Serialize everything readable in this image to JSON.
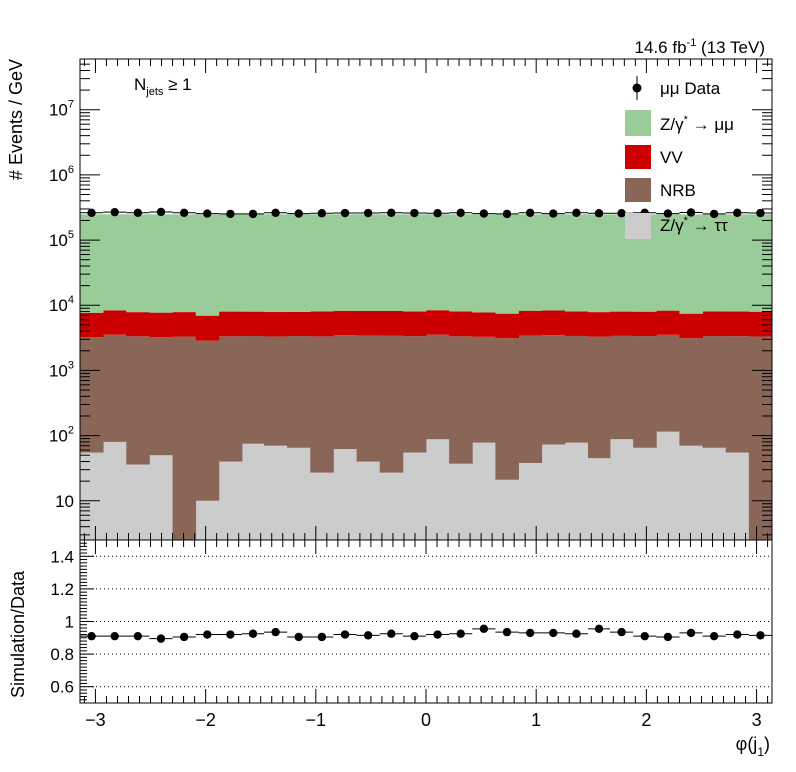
{
  "lumi_text": {
    "main": "14.6 fb",
    "sup": "-1",
    "rest": " (13 TeV)"
  },
  "category": {
    "base": "N",
    "sub": "jets",
    "rest": " ≥ 1"
  },
  "ylabel_top": "# Events / GeV",
  "ylabel_bottom": "Simulation/Data",
  "xlabel": {
    "main": "φ(j",
    "sub": "1",
    "close": ")"
  },
  "legend": [
    {
      "key": "data",
      "label": "μμ Data",
      "color": "#000000"
    },
    {
      "key": "zmm",
      "label_a": "Z/γ",
      "label_sup": "*",
      "label_b": " → μμ",
      "color": "#99cc99"
    },
    {
      "key": "vv",
      "label": "VV",
      "color": "#cc0000"
    },
    {
      "key": "nrb",
      "label": "NRB",
      "color": "#8a6658"
    },
    {
      "key": "ztt",
      "label_a": "Z/γ",
      "label_sup": "*",
      "label_b": " → ττ",
      "color": "#cccccc"
    }
  ],
  "chart_data": {
    "type": "bar",
    "stacked": true,
    "bin_edges": [
      -3.14,
      -2.93,
      -2.72,
      -2.51,
      -2.3,
      -2.09,
      -1.88,
      -1.67,
      -1.47,
      -1.26,
      -1.05,
      -0.84,
      -0.63,
      -0.42,
      -0.21,
      0.0,
      0.21,
      0.42,
      0.63,
      0.84,
      1.05,
      1.26,
      1.47,
      1.67,
      1.88,
      2.09,
      2.3,
      2.51,
      2.72,
      2.93,
      3.14
    ],
    "xlim": [
      -3.14,
      3.14
    ],
    "xticks": [
      -3,
      -2,
      -1,
      0,
      1,
      2,
      3
    ],
    "xtick_labels": [
      "−3",
      "−2",
      "−1",
      "0",
      "1",
      "2",
      "3"
    ],
    "top": {
      "yscale": "log",
      "ylim": [
        2.5,
        60000000
      ],
      "yticks": [
        10,
        100,
        1000,
        10000,
        100000,
        1000000,
        10000000
      ],
      "ytick_labels": [
        {
          "base": "10",
          "exp": ""
        },
        {
          "base": "10",
          "exp": "2"
        },
        {
          "base": "10",
          "exp": "3"
        },
        {
          "base": "10",
          "exp": "4"
        },
        {
          "base": "10",
          "exp": "5"
        },
        {
          "base": "10",
          "exp": "6"
        },
        {
          "base": "10",
          "exp": "7"
        }
      ],
      "series": [
        {
          "key": "ztt",
          "values": [
            55,
            80,
            36,
            50,
            2,
            10,
            40,
            75,
            70,
            65,
            27,
            62,
            40,
            27,
            55,
            88,
            37,
            78,
            21,
            38,
            73,
            78,
            45,
            88,
            65,
            115,
            70,
            65,
            55,
            2
          ]
        },
        {
          "key": "nrb",
          "values": [
            3200,
            3450,
            3300,
            3200,
            3300,
            2850,
            3300,
            3300,
            3250,
            3300,
            3300,
            3400,
            3400,
            3400,
            3300,
            3450,
            3300,
            3200,
            3100,
            3400,
            3400,
            3300,
            3250,
            3300,
            3300,
            3400,
            3050,
            3300,
            3300,
            3300
          ]
        },
        {
          "key": "vv",
          "values": [
            4400,
            4800,
            4500,
            4450,
            4550,
            4050,
            4650,
            4600,
            4550,
            4550,
            4700,
            4750,
            4750,
            4750,
            4650,
            4850,
            4700,
            4500,
            4300,
            4800,
            4850,
            4650,
            4550,
            4600,
            4600,
            4750,
            4300,
            4650,
            4650,
            4650
          ]
        },
        {
          "key": "zmm",
          "values": [
            240000,
            240000,
            240000,
            240000,
            240000,
            240000,
            240000,
            240000,
            240000,
            240000,
            240000,
            240000,
            240000,
            240000,
            240000,
            240000,
            240000,
            240000,
            240000,
            240000,
            240000,
            240000,
            240000,
            240000,
            240000,
            240000,
            240000,
            240000,
            240000,
            240000
          ]
        }
      ],
      "data": [
        262000,
        268000,
        262000,
        270000,
        262000,
        255000,
        252000,
        252000,
        262000,
        255000,
        258000,
        260000,
        260000,
        262000,
        260000,
        258000,
        262000,
        255000,
        252000,
        262000,
        255000,
        262000,
        258000,
        258000,
        262000,
        255000,
        265000,
        252000,
        262000,
        260000
      ]
    },
    "bottom": {
      "yscale": "linear",
      "ylim": [
        0.5,
        1.5
      ],
      "yticks": [
        0.6,
        0.8,
        1.0,
        1.2,
        1.4
      ],
      "ytick_labels": [
        "0.6",
        "0.8",
        "1",
        "1.2",
        "1.4"
      ],
      "gridlines": [
        0.6,
        0.8,
        1.0,
        1.2,
        1.4
      ],
      "ratio": [
        0.91,
        0.91,
        0.91,
        0.895,
        0.905,
        0.92,
        0.92,
        0.925,
        0.935,
        0.905,
        0.905,
        0.92,
        0.915,
        0.925,
        0.91,
        0.92,
        0.925,
        0.955,
        0.935,
        0.93,
        0.93,
        0.925,
        0.955,
        0.935,
        0.91,
        0.905,
        0.93,
        0.91,
        0.92,
        0.915
      ]
    }
  }
}
